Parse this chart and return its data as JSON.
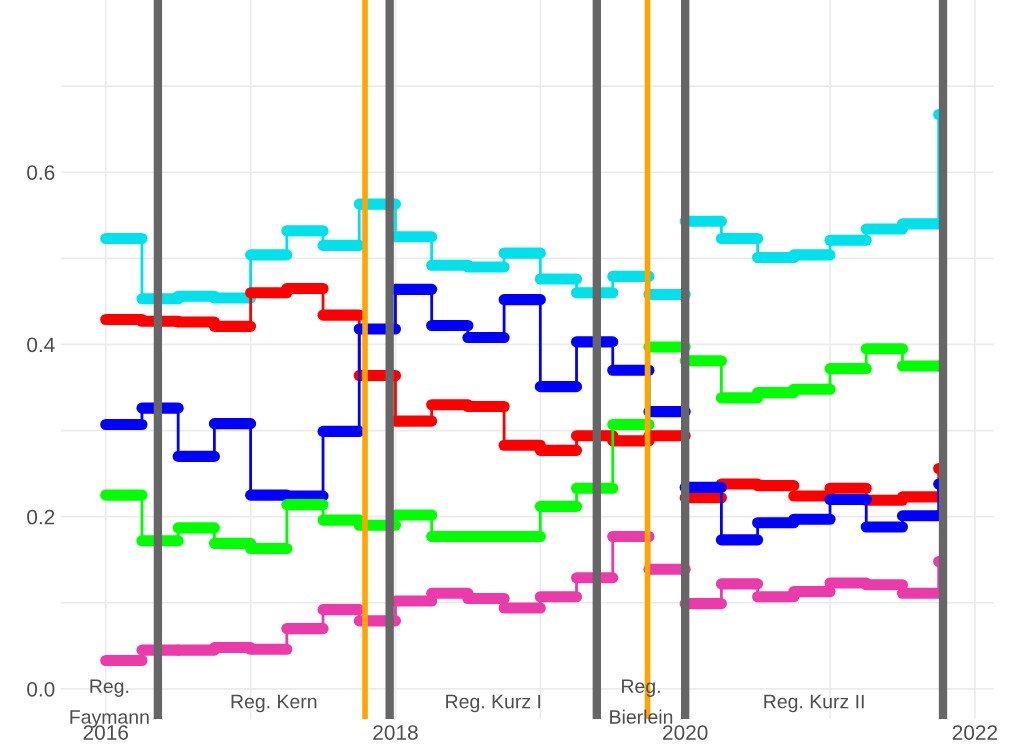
{
  "chart_data": {
    "type": "step",
    "x": [
      2016,
      2016.25,
      2016.5,
      2016.75,
      2017,
      2017.25,
      2017.5,
      2017.75,
      2018,
      2018.25,
      2018.5,
      2018.75,
      2019,
      2019.25,
      2019.5,
      2019.75,
      2020,
      2020.25,
      2020.5,
      2020.75,
      2021,
      2021.25,
      2021.5,
      2021.75
    ],
    "series": [
      {
        "color": "#00e1eb",
        "values": [
          0.523,
          0.453,
          0.456,
          0.454,
          0.504,
          0.532,
          0.515,
          0.563,
          0.525,
          0.492,
          0.49,
          0.506,
          0.476,
          0.46,
          0.479,
          0.458,
          0.543,
          0.523,
          0.501,
          0.504,
          0.521,
          0.534,
          0.54,
          0.667
        ]
      },
      {
        "color": "#ff0000",
        "values": [
          0.429,
          0.427,
          0.426,
          0.421,
          0.46,
          0.465,
          0.434,
          0.364,
          0.311,
          0.33,
          0.328,
          0.283,
          0.277,
          0.294,
          0.288,
          0.294,
          0.222,
          0.238,
          0.236,
          0.224,
          0.233,
          0.219,
          0.223,
          0.256
        ]
      },
      {
        "color": "#0000ff",
        "values": [
          0.307,
          0.326,
          0.27,
          0.308,
          0.225,
          0.224,
          0.299,
          0.418,
          0.464,
          0.422,
          0.408,
          0.452,
          0.351,
          0.403,
          0.37,
          0.322,
          0.234,
          0.173,
          0.193,
          0.197,
          0.22,
          0.188,
          0.201,
          0.238
        ]
      },
      {
        "color": "#00ff00",
        "values": [
          0.225,
          0.172,
          0.187,
          0.169,
          0.163,
          0.214,
          0.196,
          0.19,
          0.202,
          0.177,
          0.177,
          0.177,
          0.212,
          0.233,
          0.307,
          0.397,
          0.381,
          0.338,
          0.344,
          0.348,
          0.372,
          0.395,
          0.375,
          0.375
        ]
      },
      {
        "color": "#eb3aaa",
        "values": [
          0.033,
          0.045,
          0.045,
          0.048,
          0.046,
          0.07,
          0.092,
          0.079,
          0.102,
          0.111,
          0.105,
          0.094,
          0.107,
          0.129,
          0.177,
          0.139,
          0.099,
          0.122,
          0.107,
          0.113,
          0.123,
          0.121,
          0.111,
          0.148
        ]
      }
    ],
    "xlim": [
      2015.69,
      2022.13
    ],
    "xticks": [
      2016,
      {
        "value": 2017,
        "label": null
      },
      2018,
      {
        "value": 2019,
        "label": null
      },
      2020,
      {
        "value": 2021,
        "label": null
      },
      2022
    ],
    "ylim": [
      -0.035,
      0.8
    ],
    "yticks": [
      "0.0",
      {
        "value": 0.1,
        "label": null
      },
      {
        "value": 0.2,
        "label": "0.2"
      },
      {
        "value": 0.3,
        "label": null
      },
      {
        "value": 0.4,
        "label": "0.4"
      },
      {
        "value": 0.5,
        "label": null
      },
      {
        "value": 0.6,
        "label": "0.6"
      },
      {
        "value": 0.7,
        "label": null
      }
    ],
    "grid": true,
    "legend": false,
    "ref_lines": [
      {
        "axis": "x",
        "value": 2016.36,
        "color": "#666666"
      },
      {
        "axis": "x",
        "value": 2017.79,
        "color": "#ffa500"
      },
      {
        "axis": "x",
        "value": 2017.96,
        "color": "#666666"
      },
      {
        "axis": "x",
        "value": 2019.39,
        "color": "#666666"
      },
      {
        "axis": "x",
        "value": 2019.74,
        "color": "#ffa500"
      },
      {
        "axis": "x",
        "value": 2020.0,
        "color": "#666666"
      },
      {
        "axis": "x",
        "value": 2021.78,
        "color": "#666666"
      }
    ],
    "annotations": [
      "Reg.\nFaymann",
      "Reg. Kern",
      "Reg. Kurz I",
      "Reg.\nBierlein",
      "Reg. Kurz II"
    ]
  }
}
